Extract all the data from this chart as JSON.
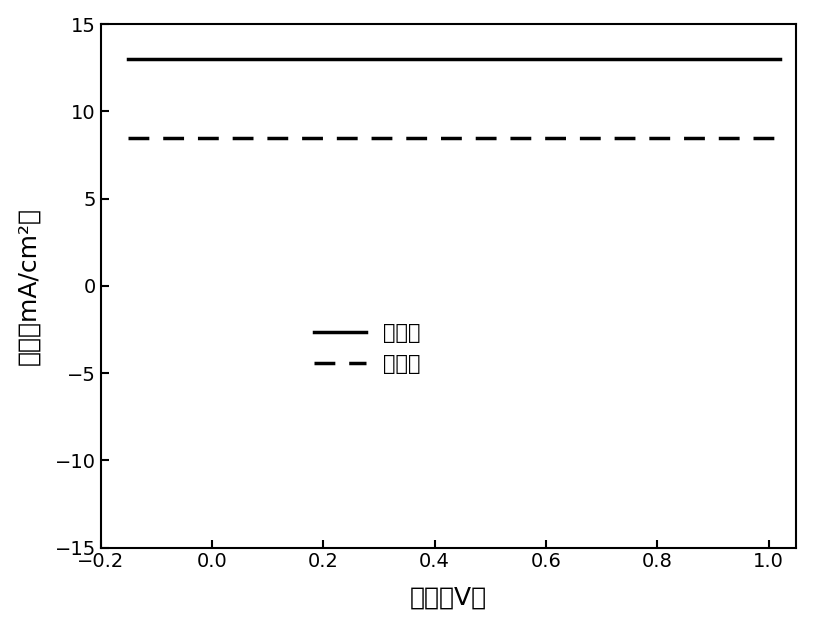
{
  "title": "",
  "xlabel": "电压（V）",
  "ylabel": "电流（mA/cm²）",
  "xlim": [
    -0.2,
    1.05
  ],
  "ylim": [
    -15,
    15
  ],
  "xticks": [
    -0.2,
    0.0,
    0.2,
    0.4,
    0.6,
    0.8,
    1.0
  ],
  "yticks": [
    -15,
    -10,
    -5,
    0,
    5,
    10,
    15
  ],
  "legend_solid": "修饰后",
  "legend_dashed": "修饰前",
  "line_color": "#000000",
  "background_color": "#ffffff",
  "solid_Jsc": 13.0,
  "solid_Voc": 1.02,
  "solid_n": 3.5,
  "dashed_Jsc": 8.5,
  "dashed_Voc": 0.975,
  "dashed_n": 2.2,
  "solid_Rs": 2.5,
  "dashed_Rs": 5.0
}
